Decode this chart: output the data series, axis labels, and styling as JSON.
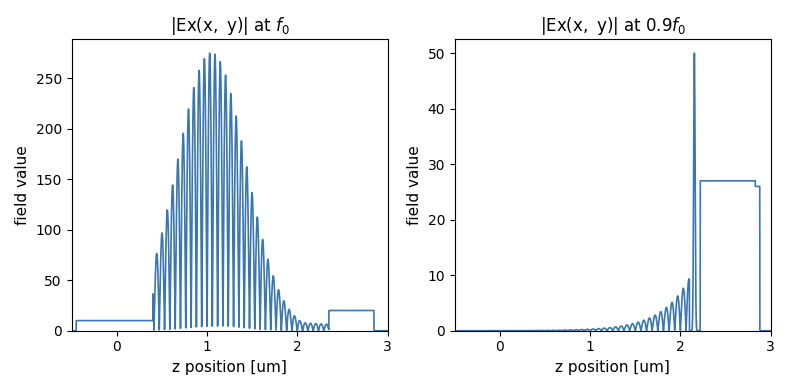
{
  "xlabel": "z position [um]",
  "ylabel": "field value",
  "line_color": "#3A76AF",
  "line_width": 1.2,
  "figsize": [
    7.9,
    3.9
  ],
  "dpi": 100
}
